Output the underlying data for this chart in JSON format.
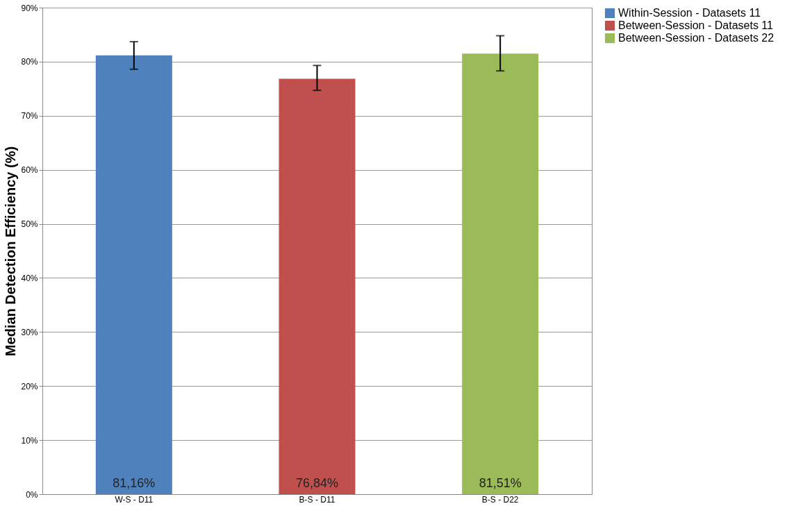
{
  "chart_data": {
    "type": "bar",
    "ylabel": "Median Detection Efficiency (%)",
    "categories": [
      "W-S - D11",
      "B-S - D11",
      "B-S - D22"
    ],
    "series": [
      {
        "name": "Within-Session - Datasets 11",
        "color": "#4f81bd",
        "values": [
          81.16,
          null,
          null
        ],
        "errors": [
          [
            78.6,
            83.7
          ],
          null,
          null
        ],
        "value_labels": [
          "81,16%",
          null,
          null
        ]
      },
      {
        "name": "Between-Session - Datasets 11",
        "color": "#c0504d",
        "values": [
          null,
          76.84,
          null
        ],
        "errors": [
          null,
          [
            74.7,
            79.3
          ],
          null
        ],
        "value_labels": [
          null,
          "76,84%",
          null
        ]
      },
      {
        "name": "Between-Session - Datasets 22",
        "color": "#9bbb59",
        "values": [
          null,
          null,
          81.51
        ],
        "errors": [
          null,
          null,
          [
            78.3,
            84.8
          ]
        ],
        "value_labels": [
          null,
          null,
          "81,51%"
        ]
      }
    ],
    "ylim": [
      0,
      90
    ],
    "yticks": [
      {
        "value": 0,
        "label": "0%"
      },
      {
        "value": 10,
        "label": "10%"
      },
      {
        "value": 20,
        "label": "20%"
      },
      {
        "value": 30,
        "label": "30%"
      },
      {
        "value": 40,
        "label": "40%"
      },
      {
        "value": 50,
        "label": "50%"
      },
      {
        "value": 60,
        "label": "60%"
      },
      {
        "value": 70,
        "label": "70%"
      },
      {
        "value": 80,
        "label": "80%"
      },
      {
        "value": 90,
        "label": "90%"
      }
    ],
    "grid": "y",
    "legend": "right"
  }
}
